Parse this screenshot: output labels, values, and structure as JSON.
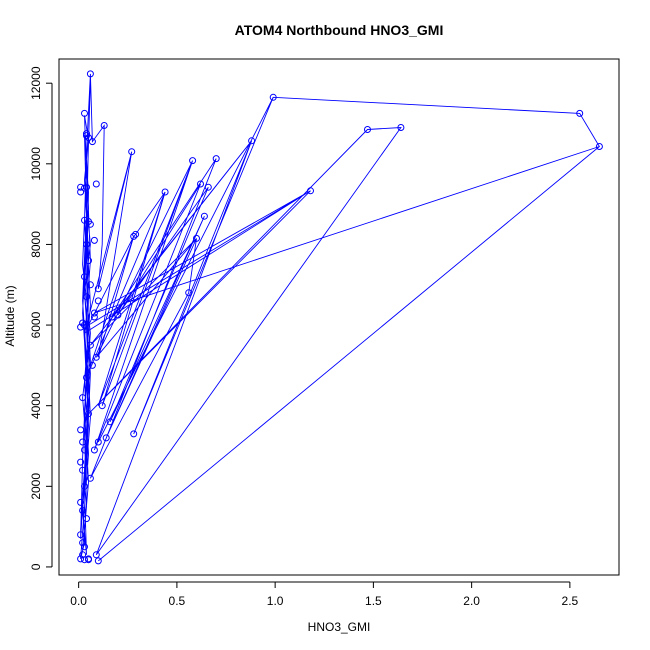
{
  "chart_data": {
    "type": "line",
    "title": "ATOM4 Northbound HNO3_GMI",
    "xlabel": "HNO3_GMI",
    "ylabel": "Altitude (m)",
    "xlim": [
      -0.1,
      2.75
    ],
    "ylim": [
      -200,
      12600
    ],
    "xticks": [
      0.0,
      0.5,
      1.0,
      1.5,
      2.0,
      2.5
    ],
    "xtick_labels": [
      "0.0",
      "0.5",
      "1.0",
      "1.5",
      "2.0",
      "2.5"
    ],
    "yticks": [
      0,
      2000,
      4000,
      6000,
      8000,
      10000,
      12000
    ],
    "ytick_labels": [
      "0",
      "2000",
      "4000",
      "6000",
      "8000",
      "10000",
      "12000"
    ],
    "grid": false,
    "legend": "none",
    "series_color": "#0000ff",
    "marker": "open-circle",
    "points": [
      [
        0.01,
        9420
      ],
      [
        0.03,
        9400
      ],
      [
        0.04,
        9420
      ],
      [
        0.01,
        9300
      ],
      [
        0.03,
        8600
      ],
      [
        0.05,
        8570
      ],
      [
        0.06,
        8500
      ],
      [
        0.04,
        8000
      ],
      [
        0.05,
        7600
      ],
      [
        0.03,
        7200
      ],
      [
        0.06,
        7000
      ],
      [
        0.04,
        6700
      ],
      [
        0.03,
        6000
      ],
      [
        0.01,
        5950
      ],
      [
        0.02,
        6050
      ],
      [
        0.08,
        6300
      ],
      [
        0.1,
        6900
      ],
      [
        0.06,
        5500
      ],
      [
        0.07,
        5000
      ],
      [
        0.04,
        4700
      ],
      [
        0.02,
        4200
      ],
      [
        0.05,
        3800
      ],
      [
        0.01,
        3400
      ],
      [
        0.02,
        3100
      ],
      [
        0.03,
        2900
      ],
      [
        0.01,
        2600
      ],
      [
        0.02,
        2400
      ],
      [
        0.03,
        2000
      ],
      [
        0.01,
        1600
      ],
      [
        0.02,
        1400
      ],
      [
        0.01,
        800
      ],
      [
        0.03,
        500
      ],
      [
        0.02,
        300
      ],
      [
        0.01,
        200
      ],
      [
        0.03,
        180
      ],
      [
        0.05,
        180
      ],
      [
        0.02,
        600
      ],
      [
        0.04,
        1200
      ],
      [
        0.06,
        2200
      ],
      [
        0.08,
        2900
      ],
      [
        0.1,
        3100
      ],
      [
        0.12,
        4000
      ],
      [
        0.09,
        5200
      ],
      [
        0.08,
        6200
      ],
      [
        0.1,
        6600
      ],
      [
        0.04,
        10700
      ],
      [
        0.04,
        10750
      ],
      [
        0.05,
        10650
      ],
      [
        0.03,
        11250
      ],
      [
        0.06,
        12230
      ],
      [
        0.07,
        10550
      ],
      [
        0.09,
        9500
      ],
      [
        0.08,
        8100
      ],
      [
        0.13,
        10950
      ],
      [
        0.17,
        6200
      ],
      [
        0.2,
        6250
      ],
      [
        0.16,
        3600
      ],
      [
        0.14,
        3200
      ],
      [
        0.27,
        10300
      ],
      [
        0.28,
        8200
      ],
      [
        0.29,
        8250
      ],
      [
        0.28,
        3300
      ],
      [
        0.44,
        9300
      ],
      [
        0.58,
        10080
      ],
      [
        0.62,
        9500
      ],
      [
        0.66,
        9420
      ],
      [
        0.64,
        8700
      ],
      [
        0.6,
        8150
      ],
      [
        0.56,
        6800
      ],
      [
        0.7,
        10130
      ],
      [
        0.88,
        10570
      ],
      [
        0.99,
        11650
      ],
      [
        2.55,
        11250
      ],
      [
        2.65,
        10430
      ],
      [
        1.47,
        10850
      ],
      [
        1.64,
        10900
      ],
      [
        1.18,
        9330
      ],
      [
        0.09,
        300
      ],
      [
        0.1,
        150
      ],
      [
        0.05,
        200
      ]
    ],
    "path": [
      [
        0.06,
        12100
      ],
      [
        0.05,
        10500
      ],
      [
        0.04,
        9000
      ],
      [
        0.06,
        8000
      ],
      [
        0.03,
        6800
      ],
      [
        0.05,
        5400
      ],
      [
        0.02,
        4200
      ],
      [
        0.04,
        3000
      ],
      [
        0.02,
        1800
      ],
      [
        0.03,
        600
      ],
      [
        0.01,
        200
      ],
      [
        0.05,
        2800
      ],
      [
        0.03,
        4600
      ],
      [
        0.06,
        6500
      ],
      [
        0.04,
        8400
      ],
      [
        0.05,
        10600
      ],
      [
        0.03,
        11200
      ],
      [
        0.04,
        9800
      ],
      [
        0.02,
        7500
      ],
      [
        0.06,
        5800
      ],
      [
        0.03,
        3900
      ],
      [
        0.05,
        2100
      ],
      [
        0.02,
        400
      ],
      [
        0.04,
        1500
      ],
      [
        0.03,
        3300
      ],
      [
        0.06,
        5100
      ],
      [
        0.04,
        7100
      ],
      [
        0.05,
        9300
      ],
      [
        0.03,
        10700
      ],
      [
        0.04,
        8800
      ],
      [
        0.02,
        6600
      ],
      [
        0.05,
        4400
      ],
      [
        0.03,
        2400
      ],
      [
        0.01,
        900
      ],
      [
        0.04,
        2600
      ],
      [
        0.06,
        4800
      ],
      [
        0.03,
        6900
      ],
      [
        0.05,
        8900
      ],
      [
        0.04,
        10100
      ],
      [
        0.06,
        7600
      ],
      [
        0.03,
        5600
      ],
      [
        0.05,
        3500
      ],
      [
        0.02,
        1400
      ],
      [
        0.04,
        300
      ],
      [
        0.03,
        1900
      ],
      [
        0.06,
        3700
      ],
      [
        0.04,
        5900
      ],
      [
        0.05,
        7800
      ],
      [
        0.03,
        9600
      ],
      [
        0.05,
        10650
      ],
      [
        0.04,
        8300
      ],
      [
        0.02,
        6300
      ],
      [
        0.05,
        4100
      ],
      [
        0.03,
        2200
      ],
      [
        0.01,
        700
      ],
      [
        0.02,
        2700
      ],
      [
        0.04,
        4900
      ],
      [
        0.05,
        6700
      ],
      [
        0.03,
        8600
      ],
      [
        0.04,
        10300
      ],
      [
        0.06,
        12230
      ],
      [
        0.07,
        10550
      ],
      [
        0.13,
        10950
      ],
      [
        0.12,
        8000
      ],
      [
        0.1,
        6900
      ],
      [
        0.27,
        10300
      ],
      [
        0.1,
        5200
      ],
      [
        0.28,
        8200
      ],
      [
        0.29,
        8250
      ],
      [
        0.44,
        9300
      ],
      [
        0.12,
        4000
      ],
      [
        0.58,
        10080
      ],
      [
        0.08,
        2900
      ],
      [
        0.62,
        9500
      ],
      [
        0.2,
        6250
      ],
      [
        0.66,
        9420
      ],
      [
        0.16,
        3600
      ],
      [
        0.64,
        8700
      ],
      [
        0.14,
        3200
      ],
      [
        0.6,
        8150
      ],
      [
        0.56,
        6800
      ],
      [
        0.06,
        2200
      ],
      [
        0.7,
        10130
      ],
      [
        0.17,
        6200
      ],
      [
        0.88,
        10570
      ],
      [
        0.28,
        3300
      ],
      [
        0.99,
        11650
      ],
      [
        0.1,
        3100
      ],
      [
        0.99,
        11650
      ],
      [
        2.55,
        11250
      ],
      [
        2.65,
        10430
      ],
      [
        0.1,
        150
      ],
      [
        2.65,
        10430
      ],
      [
        0.08,
        6300
      ],
      [
        1.18,
        9330
      ],
      [
        0.05,
        3800
      ],
      [
        1.47,
        10850
      ],
      [
        1.64,
        10900
      ],
      [
        0.09,
        300
      ],
      [
        0.88,
        10570
      ],
      [
        0.06,
        5500
      ],
      [
        0.6,
        8150
      ],
      [
        0.09,
        5200
      ],
      [
        0.58,
        10080
      ],
      [
        0.1,
        4000
      ],
      [
        0.44,
        9300
      ],
      [
        0.04,
        4700
      ],
      [
        0.28,
        8200
      ],
      [
        0.05,
        6000
      ],
      [
        1.18,
        9330
      ],
      [
        0.03,
        5800
      ],
      [
        0.27,
        10300
      ]
    ]
  }
}
